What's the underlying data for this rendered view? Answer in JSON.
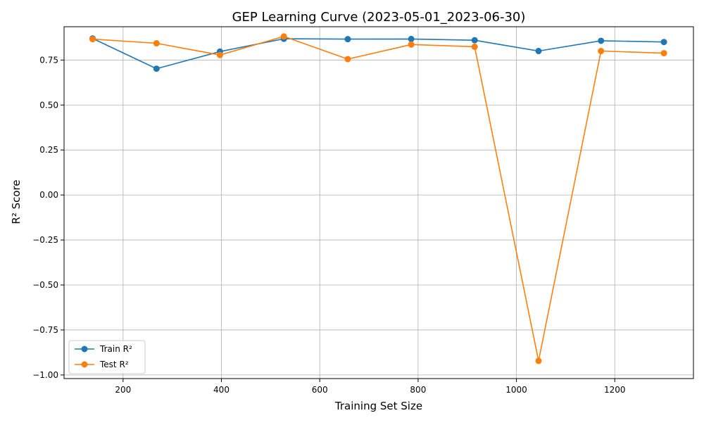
{
  "chart_data": {
    "type": "line",
    "title": "GEP Learning Curve (2023-05-01_2023-06-30)",
    "xlabel": "Training Set Size",
    "ylabel": "R² Score",
    "xlim": [
      80,
      1360
    ],
    "ylim": [
      -1.02,
      0.935
    ],
    "xticks": [
      200,
      400,
      600,
      800,
      1000,
      1200
    ],
    "yticks": [
      -1.0,
      -0.75,
      -0.5,
      -0.25,
      0.0,
      0.25,
      0.5,
      0.75
    ],
    "ytick_labels": [
      "−1.00",
      "−0.75",
      "−0.50",
      "−0.25",
      "0.00",
      "0.25",
      "0.50",
      "0.75"
    ],
    "grid": true,
    "legend_position": "lower-left",
    "x": [
      138,
      268,
      397,
      527,
      657,
      786,
      915,
      1045,
      1172,
      1300
    ],
    "series": [
      {
        "name": "Train R²",
        "color": "#1f77b4",
        "values": [
          0.87,
          0.702,
          0.797,
          0.868,
          0.866,
          0.867,
          0.86,
          0.8,
          0.857,
          0.85
        ]
      },
      {
        "name": "Test R²",
        "color": "#ff7f0e",
        "values": [
          0.866,
          0.843,
          0.778,
          0.881,
          0.755,
          0.836,
          0.824,
          -0.922,
          0.8,
          0.788
        ]
      }
    ]
  }
}
